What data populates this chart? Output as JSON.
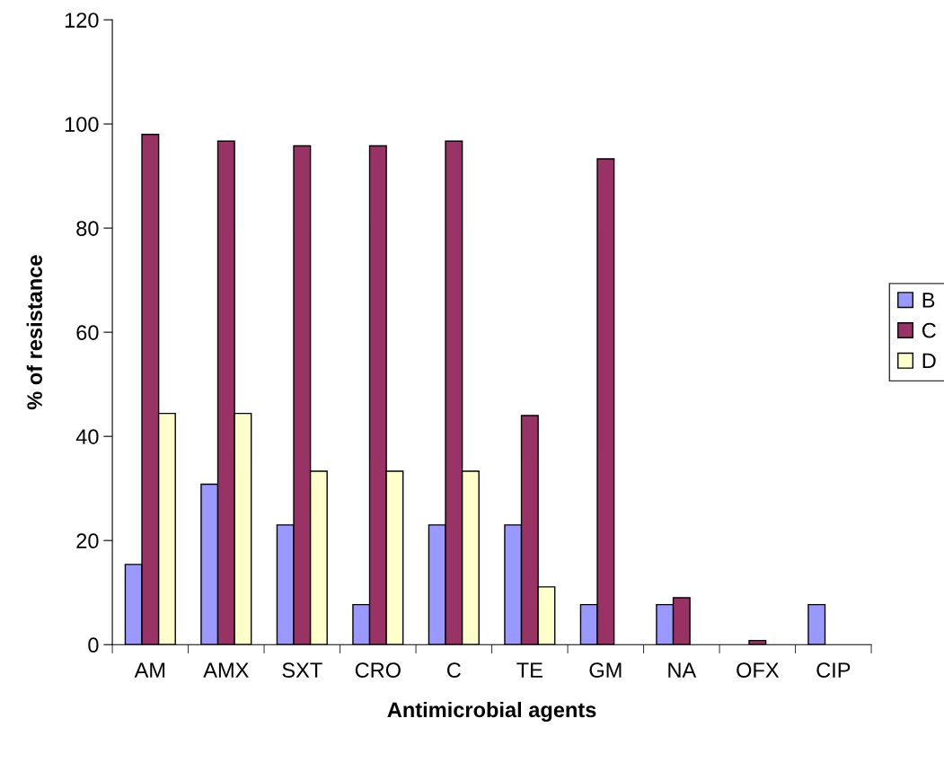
{
  "chart_data": {
    "type": "bar",
    "xlabel": "Antimicrobial agents",
    "ylabel": "% of resistance",
    "categories": [
      "AM",
      "AMX",
      "SXT",
      "CRO",
      "C",
      "TE",
      "GM",
      "NA",
      "OFX",
      "CIP"
    ],
    "series": [
      {
        "name": "B",
        "color": "#9999ff",
        "values": [
          15.4,
          30.8,
          23,
          7.7,
          23,
          23,
          7.7,
          7.7,
          null,
          7.7
        ]
      },
      {
        "name": "C",
        "color": "#993366",
        "values": [
          98,
          96.7,
          95.8,
          95.8,
          96.7,
          44,
          93.3,
          9,
          0.8,
          null
        ]
      },
      {
        "name": "D",
        "color": "#ffffcc",
        "values": [
          44.4,
          44.4,
          33.3,
          33.3,
          33.3,
          11.1,
          null,
          null,
          null,
          null
        ]
      }
    ],
    "ylim": [
      0,
      120
    ],
    "yticks": [
      0,
      20,
      40,
      60,
      80,
      100,
      120
    ],
    "grid": false,
    "legend": "right"
  }
}
